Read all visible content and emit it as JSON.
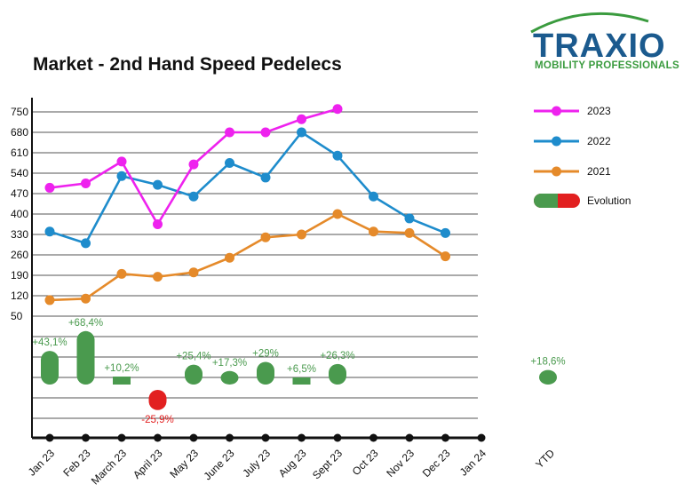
{
  "logo": {
    "brand": "TRAXIO",
    "tagline": "MOBILITY PROFESSIONALS"
  },
  "chart_data": {
    "type": "line",
    "title": "Market - 2nd Hand Speed Pedelecs",
    "categories": [
      "Jan 23",
      "Feb 23",
      "March 23",
      "April 23",
      "May 23",
      "June 23",
      "July 23",
      "Aug 23",
      "Sept 23",
      "Oct 23",
      "Nov 23",
      "Dec 23",
      "Jan 24"
    ],
    "y_ticks": [
      750,
      680,
      610,
      540,
      470,
      400,
      330,
      260,
      190,
      120,
      50
    ],
    "grid": true,
    "legend_position": "right",
    "series": [
      {
        "name": "2023",
        "color": "#ee22ee",
        "values": [
          490,
          505,
          580,
          365,
          570,
          680,
          680,
          725,
          760,
          null,
          null,
          null,
          null
        ]
      },
      {
        "name": "2022",
        "color": "#1e8ccc",
        "values": [
          340,
          300,
          530,
          500,
          460,
          575,
          525,
          680,
          600,
          460,
          385,
          335,
          null
        ]
      },
      {
        "name": "2021",
        "color": "#e58a2a",
        "values": [
          105,
          110,
          195,
          185,
          200,
          250,
          320,
          330,
          400,
          340,
          335,
          255,
          null
        ]
      }
    ],
    "evolution": {
      "name": "Evolution",
      "positive_color": "#4a9a4e",
      "negative_color": "#e22020",
      "values": [
        {
          "label": "+43,1%",
          "value": 43.1
        },
        {
          "label": "+68,4%",
          "value": 68.4
        },
        {
          "label": "+10,2%",
          "value": 10.2
        },
        {
          "label": "-25,9%",
          "value": -25.9
        },
        {
          "label": "+25,4%",
          "value": 25.4
        },
        {
          "label": "+17,3%",
          "value": 17.3
        },
        {
          "label": "+29%",
          "value": 29
        },
        {
          "label": "+6,5%",
          "value": 6.5
        },
        {
          "label": "+26,3%",
          "value": 26.3
        }
      ],
      "ytd": {
        "category": "YTD",
        "label": "+18,6%",
        "value": 18.6
      }
    }
  }
}
